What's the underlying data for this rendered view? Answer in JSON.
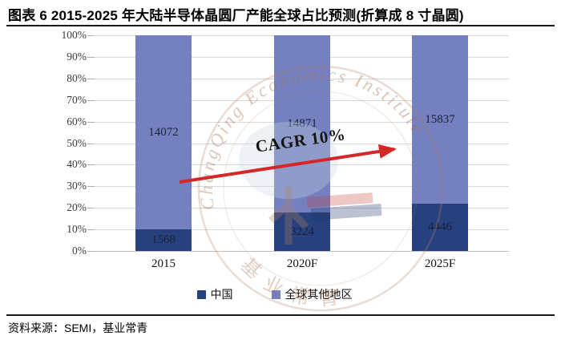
{
  "header": {
    "title": "图表 6 2015-2025 年大陆半导体晶圆厂产能全球占比预测(折算成 8 寸晶圆)"
  },
  "footer": {
    "source": "资料来源：SEMI，基业常青"
  },
  "watermark": {
    "arc_text": "ChangQing Economics Institute",
    "bottom_text": "基业常青"
  },
  "chart_data": {
    "type": "bar",
    "variant": "stacked-100-percent",
    "title": "2015-2025 年大陆半导体晶圆厂产能全球占比预测(折算成 8 寸晶圆)",
    "categories": [
      "2015",
      "2020F",
      "2025F"
    ],
    "series": [
      {
        "name": "中国",
        "color": "#27417f",
        "values": [
          1568,
          3224,
          4446
        ]
      },
      {
        "name": "全球其他地区",
        "color": "#7480bf",
        "values": [
          14072,
          14871,
          15837
        ]
      }
    ],
    "y_ticks": [
      "0%",
      "10%",
      "20%",
      "30%",
      "40%",
      "50%",
      "60%",
      "70%",
      "80%",
      "90%",
      "100%"
    ],
    "ylim": [
      0,
      100
    ],
    "xlabel": "",
    "ylabel": "",
    "grid": true,
    "grid_color": "#d9d9d9",
    "legend_position": "bottom",
    "annotation": {
      "label": "CAGR 10%",
      "arrow_color": "#d42828"
    }
  }
}
